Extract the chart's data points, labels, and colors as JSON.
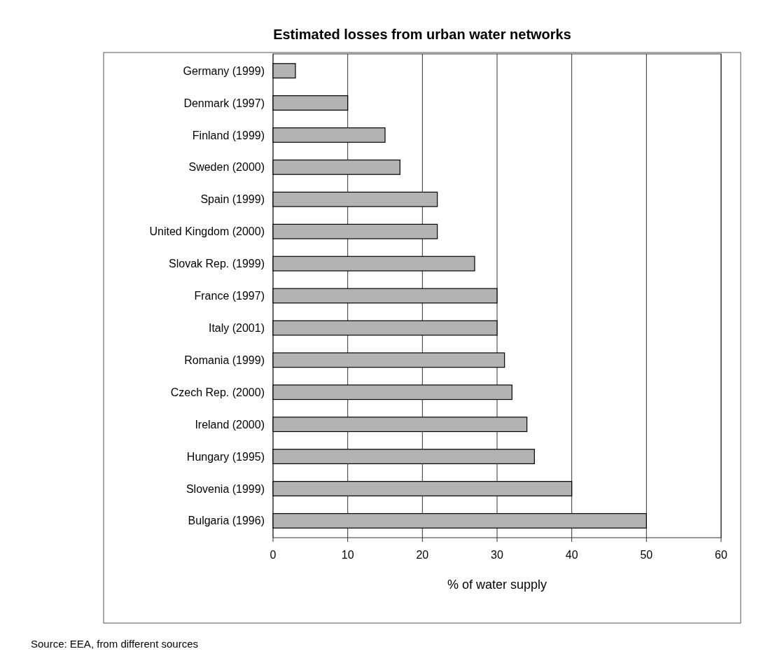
{
  "chart_data": {
    "type": "bar",
    "orientation": "horizontal",
    "title": "Estimated losses from urban water networks",
    "xlabel": "% of water supply",
    "categories": [
      "Germany (1999)",
      "Denmark (1997)",
      "Finland (1999)",
      "Sweden (2000)",
      "Spain (1999)",
      "United Kingdom (2000)",
      "Slovak Rep. (1999)",
      "France (1997)",
      "Italy (2001)",
      "Romania (1999)",
      "Czech Rep. (2000)",
      "Ireland (2000)",
      "Hungary (1995)",
      "Slovenia (1999)",
      "Bulgaria (1996)"
    ],
    "values": [
      3,
      10,
      15,
      17,
      22,
      22,
      27,
      30,
      30,
      31,
      32,
      34,
      35,
      40,
      50
    ],
    "color": "#b3b3b3",
    "xlim": [
      0,
      60
    ],
    "xticks": [
      0,
      10,
      20,
      30,
      40,
      50,
      60
    ],
    "grid": "x",
    "annotations": [
      "Source: EEA, from different sources"
    ]
  }
}
